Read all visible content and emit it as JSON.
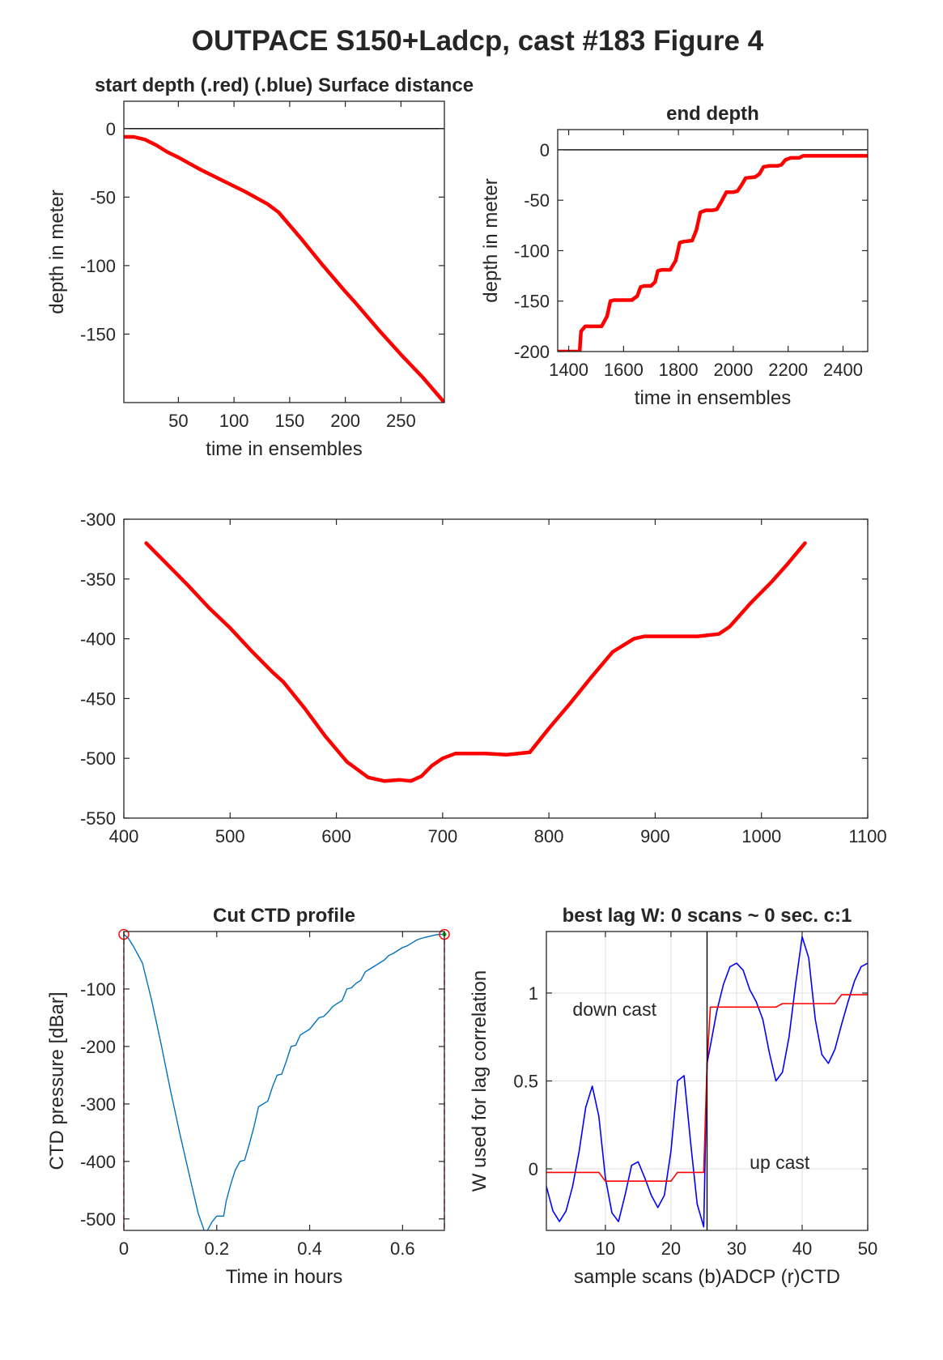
{
  "figure": {
    "suptitle": "OUTPACE S150+Ladcp, cast #183   Figure 4"
  },
  "colors": {
    "red": "#ff0000",
    "blue": "#0000ff",
    "matlab_blue": "#0072bd",
    "axis": "#262626",
    "grid": "#dfdfdf",
    "green": "#00aa00"
  },
  "chart_data": [
    {
      "id": "start_depth",
      "type": "line",
      "title": "start depth (.red) (.blue) Surface distance",
      "xlabel": "time in ensembles",
      "ylabel": "depth in meter",
      "xlim": [
        1,
        289
      ],
      "ylim": [
        -200,
        20
      ],
      "xticks": [
        50,
        100,
        150,
        200,
        250
      ],
      "yticks": [
        0,
        -50,
        -100,
        -150
      ],
      "grid": false,
      "series": [
        {
          "color": "red",
          "x": [
            1,
            10,
            20,
            30,
            40,
            50,
            70,
            90,
            110,
            130,
            140,
            160,
            180,
            200,
            210,
            230,
            250,
            270,
            289
          ],
          "y": [
            -6,
            -6,
            -8,
            -12,
            -17,
            -21,
            -30,
            -38,
            -46,
            -55,
            -61,
            -80,
            -100,
            -119,
            -128,
            -147,
            -165,
            -182,
            -200
          ]
        },
        {
          "color": "black",
          "x": [
            1,
            289
          ],
          "y": [
            0,
            0
          ]
        }
      ]
    },
    {
      "id": "end_depth",
      "type": "line",
      "title": "end depth",
      "xlabel": "time in ensembles",
      "ylabel": "depth in meter",
      "xlim": [
        1360,
        2490
      ],
      "ylim": [
        -200,
        20
      ],
      "xticks": [
        1400,
        1600,
        1800,
        2000,
        2200,
        2400
      ],
      "yticks": [
        0,
        -50,
        -100,
        -150,
        -200
      ],
      "grid": false,
      "series": [
        {
          "color": "red",
          "x": [
            1360,
            1420,
            1440,
            1445,
            1460,
            1520,
            1540,
            1552,
            1565,
            1630,
            1650,
            1662,
            1675,
            1700,
            1715,
            1725,
            1740,
            1770,
            1790,
            1805,
            1820,
            1850,
            1865,
            1880,
            1900,
            1925,
            1940,
            1955,
            1975,
            2000,
            2015,
            2030,
            2045,
            2080,
            2095,
            2110,
            2130,
            2160,
            2175,
            2190,
            2210,
            2240,
            2255,
            2270,
            2290,
            2340,
            2360,
            2375,
            2490
          ],
          "y": [
            -200,
            -200,
            -200,
            -180,
            -175,
            -175,
            -165,
            -150,
            -149,
            -149,
            -145,
            -136,
            -135,
            -135,
            -131,
            -120,
            -119,
            -119,
            -110,
            -92,
            -91,
            -90,
            -80,
            -62,
            -60,
            -60,
            -59,
            -52,
            -42,
            -42,
            -41,
            -35,
            -28,
            -27,
            -24,
            -17,
            -16,
            -16,
            -15,
            -10,
            -8,
            -8,
            -6,
            -6,
            -6,
            -6,
            -6,
            -6,
            -6
          ]
        },
        {
          "color": "black",
          "x": [
            1360,
            2490
          ],
          "y": [
            0,
            0
          ]
        }
      ]
    },
    {
      "id": "depth_track",
      "type": "line",
      "title": "",
      "xlabel": "",
      "ylabel": "",
      "xlim": [
        400,
        1100
      ],
      "ylim": [
        -550,
        -300
      ],
      "xticks": [
        400,
        500,
        600,
        700,
        800,
        900,
        1000,
        1100
      ],
      "yticks": [
        -300,
        -350,
        -400,
        -450,
        -500,
        -550
      ],
      "grid": false,
      "series": [
        {
          "color": "red",
          "x": [
            421,
            440,
            460,
            480,
            500,
            520,
            540,
            550,
            570,
            590,
            610,
            630,
            645,
            660,
            670,
            680,
            690,
            700,
            712,
            725,
            740,
            760,
            782,
            800,
            820,
            840,
            860,
            880,
            890,
            910,
            940,
            960,
            970,
            990,
            1010,
            1025,
            1041
          ],
          "y": [
            -320,
            -337,
            -355,
            -374,
            -391,
            -410,
            -428,
            -436,
            -458,
            -482,
            -503,
            -516,
            -519,
            -518,
            -519,
            -515,
            -506,
            -500,
            -496,
            -496,
            -496,
            -497,
            -495,
            -475,
            -454,
            -432,
            -411,
            -400,
            -398,
            -398,
            -398,
            -396,
            -390,
            -370,
            -352,
            -337,
            -320
          ]
        }
      ]
    },
    {
      "id": "cut_ctd",
      "type": "line",
      "title": "Cut CTD profile",
      "xlabel": "Time in hours",
      "ylabel": "CTD pressure [dBar]",
      "xlim": [
        0,
        0.69
      ],
      "ylim": [
        -520,
        0
      ],
      "xticks": [
        0,
        0.2,
        0.4,
        0.6
      ],
      "yticks": [
        -100,
        -200,
        -300,
        -400,
        -500
      ],
      "grid": false,
      "series": [
        {
          "color": "matlab_blue",
          "x": [
            0.0,
            0.01,
            0.02,
            0.04,
            0.06,
            0.08,
            0.1,
            0.12,
            0.14,
            0.16,
            0.175,
            0.18,
            0.19,
            0.2,
            0.21,
            0.215,
            0.22,
            0.23,
            0.24,
            0.25,
            0.26,
            0.27,
            0.28,
            0.29,
            0.3,
            0.31,
            0.32,
            0.33,
            0.34,
            0.35,
            0.36,
            0.37,
            0.38,
            0.39,
            0.4,
            0.41,
            0.42,
            0.43,
            0.44,
            0.45,
            0.46,
            0.47,
            0.48,
            0.49,
            0.5,
            0.51,
            0.52,
            0.53,
            0.54,
            0.55,
            0.56,
            0.57,
            0.58,
            0.59,
            0.6,
            0.61,
            0.62,
            0.63,
            0.64,
            0.65,
            0.66,
            0.67,
            0.68,
            0.69
          ],
          "y": [
            -5,
            -12,
            -25,
            -55,
            -120,
            -195,
            -275,
            -350,
            -420,
            -490,
            -525,
            -520,
            -505,
            -495,
            -495,
            -495,
            -470,
            -440,
            -415,
            -400,
            -398,
            -370,
            -340,
            -305,
            -300,
            -295,
            -270,
            -250,
            -248,
            -225,
            -200,
            -198,
            -180,
            -175,
            -170,
            -160,
            -150,
            -148,
            -140,
            -130,
            -125,
            -120,
            -100,
            -98,
            -90,
            -85,
            -70,
            -65,
            -60,
            -55,
            -50,
            -42,
            -38,
            -33,
            -28,
            -25,
            -20,
            -15,
            -12,
            -10,
            -8,
            -6,
            -5,
            -5
          ]
        }
      ],
      "markers": [
        {
          "x": 0.0,
          "y": -5
        },
        {
          "x": 0.69,
          "y": -5
        }
      ]
    },
    {
      "id": "lag",
      "type": "line",
      "title": "best lag W: 0 scans ~ 0 sec.  c:1",
      "xlabel": "sample scans (b)ADCP (r)CTD",
      "ylabel": "W used for lag correlation",
      "xlim": [
        1,
        50
      ],
      "ylim": [
        -0.35,
        1.35
      ],
      "xticks": [
        10,
        20,
        30,
        40,
        50
      ],
      "yticks": [
        0,
        0.5,
        1
      ],
      "grid": true,
      "annotations": [
        {
          "text": "down cast",
          "x": 5,
          "y": 0.87
        },
        {
          "text": "up cast",
          "x": 32,
          "y": 0.0
        }
      ],
      "series": [
        {
          "color": "blue",
          "x": [
            1,
            2,
            3,
            4,
            5,
            6,
            7,
            8,
            9,
            10,
            11,
            12,
            13,
            14,
            15,
            16,
            17,
            18,
            19,
            20,
            21,
            22,
            23,
            24,
            25,
            25.5,
            26,
            27,
            28,
            29,
            30,
            31,
            32,
            33,
            34,
            35,
            36,
            37,
            38,
            39,
            40,
            41,
            42,
            43,
            44,
            45,
            46,
            47,
            48,
            49,
            50
          ],
          "y": [
            -0.1,
            -0.24,
            -0.3,
            -0.24,
            -0.1,
            0.1,
            0.35,
            0.47,
            0.3,
            -0.05,
            -0.25,
            -0.3,
            -0.15,
            0.02,
            0.04,
            -0.05,
            -0.15,
            -0.22,
            -0.15,
            0.1,
            0.5,
            0.53,
            0.15,
            -0.2,
            -0.33,
            0.6,
            0.7,
            0.9,
            1.05,
            1.15,
            1.17,
            1.13,
            1.02,
            0.95,
            0.85,
            0.66,
            0.5,
            0.55,
            0.75,
            1.05,
            1.32,
            1.2,
            0.85,
            0.65,
            0.6,
            0.68,
            0.82,
            0.95,
            1.07,
            1.15,
            1.17
          ]
        },
        {
          "color": "red",
          "x": [
            1,
            9,
            10,
            20,
            21,
            25,
            25.5,
            26,
            36,
            37,
            45,
            46,
            50
          ],
          "y": [
            -0.02,
            -0.02,
            -0.07,
            -0.07,
            -0.02,
            -0.02,
            0.6,
            0.92,
            0.92,
            0.94,
            0.94,
            0.99,
            0.99
          ]
        },
        {
          "color": "black",
          "x": [
            25.5,
            25.5
          ],
          "y": [
            -0.35,
            1.35
          ]
        }
      ]
    }
  ]
}
